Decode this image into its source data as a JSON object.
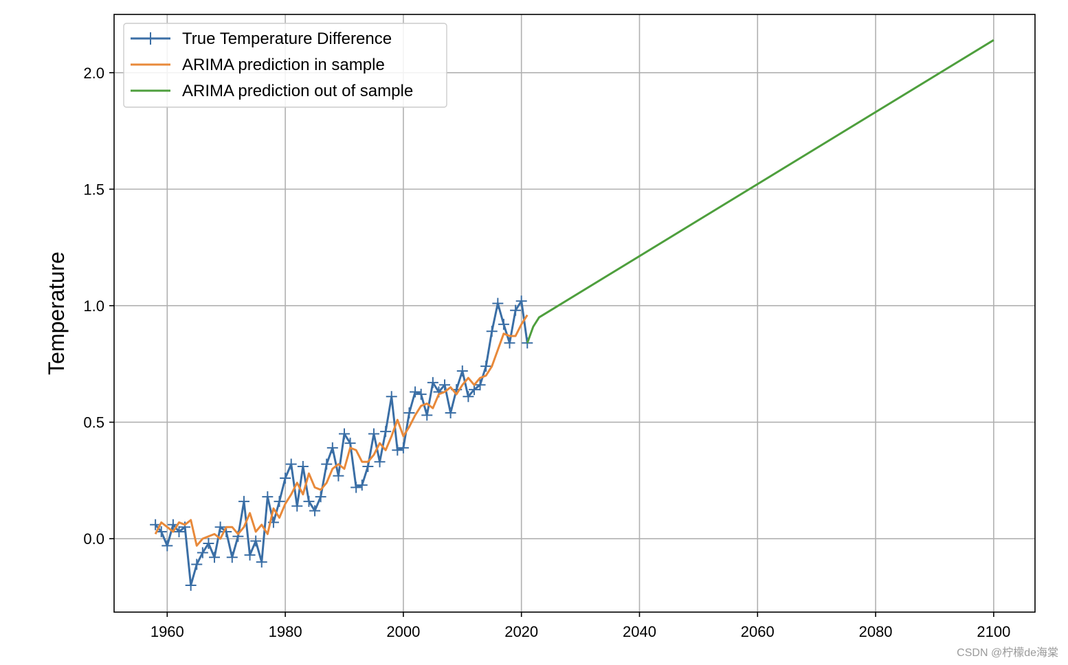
{
  "chart_data": {
    "type": "line",
    "title": "",
    "xlabel": "",
    "ylabel": "Temperature",
    "xlim": [
      1951,
      2107
    ],
    "ylim": [
      -0.315,
      2.25
    ],
    "x_ticks": [
      1960,
      1980,
      2000,
      2020,
      2040,
      2060,
      2080,
      2100
    ],
    "y_ticks": [
      0.0,
      0.5,
      1.0,
      1.5,
      2.0
    ],
    "x_tick_labels": [
      "1960",
      "1980",
      "2000",
      "2020",
      "2040",
      "2060",
      "2080",
      "2100"
    ],
    "y_tick_labels": [
      "0.0",
      "0.5",
      "1.0",
      "1.5",
      "2.0"
    ],
    "grid": true,
    "legend_position": "top-left",
    "colors": {
      "true": "#3a6ea5",
      "in_sample": "#e8893a",
      "out_sample": "#4e9f3d",
      "grid": "#b0b0b0"
    },
    "series": [
      {
        "name": "True Temperature Difference",
        "marker": "+",
        "x": [
          1958,
          1959,
          1960,
          1961,
          1962,
          1963,
          1964,
          1965,
          1966,
          1967,
          1968,
          1969,
          1970,
          1971,
          1972,
          1973,
          1974,
          1975,
          1976,
          1977,
          1978,
          1979,
          1980,
          1981,
          1982,
          1983,
          1984,
          1985,
          1986,
          1987,
          1988,
          1989,
          1990,
          1991,
          1992,
          1993,
          1994,
          1995,
          1996,
          1997,
          1998,
          1999,
          2000,
          2001,
          2002,
          2003,
          2004,
          2005,
          2006,
          2007,
          2008,
          2009,
          2010,
          2011,
          2012,
          2013,
          2014,
          2015,
          2016,
          2017,
          2018,
          2019,
          2020,
          2021
        ],
        "values": [
          0.06,
          0.03,
          -0.03,
          0.06,
          0.03,
          0.05,
          -0.2,
          -0.11,
          -0.06,
          -0.02,
          -0.08,
          0.05,
          0.03,
          -0.08,
          0.01,
          0.16,
          -0.07,
          -0.01,
          -0.1,
          0.18,
          0.07,
          0.16,
          0.26,
          0.32,
          0.14,
          0.31,
          0.16,
          0.12,
          0.18,
          0.32,
          0.39,
          0.27,
          0.45,
          0.41,
          0.22,
          0.23,
          0.31,
          0.45,
          0.33,
          0.46,
          0.61,
          0.38,
          0.39,
          0.54,
          0.63,
          0.62,
          0.53,
          0.67,
          0.63,
          0.66,
          0.54,
          0.64,
          0.72,
          0.61,
          0.64,
          0.66,
          0.74,
          0.89,
          1.01,
          0.92,
          0.84,
          0.98,
          1.02,
          0.84
        ]
      },
      {
        "name": "ARIMA prediction in sample",
        "x": [
          1958,
          1959,
          1960,
          1961,
          1962,
          1963,
          1964,
          1965,
          1966,
          1967,
          1968,
          1969,
          1970,
          1971,
          1972,
          1973,
          1974,
          1975,
          1976,
          1977,
          1978,
          1979,
          1980,
          1981,
          1982,
          1983,
          1984,
          1985,
          1986,
          1987,
          1988,
          1989,
          1990,
          1991,
          1992,
          1993,
          1994,
          1995,
          1996,
          1997,
          1998,
          1999,
          2000,
          2001,
          2002,
          2003,
          2004,
          2005,
          2006,
          2007,
          2008,
          2009,
          2010,
          2011,
          2012,
          2013,
          2014,
          2015,
          2016,
          2017,
          2018,
          2019,
          2020,
          2021
        ],
        "values": [
          0.02,
          0.07,
          0.05,
          0.03,
          0.07,
          0.06,
          0.08,
          -0.03,
          0.0,
          0.01,
          0.02,
          0.0,
          0.05,
          0.05,
          0.02,
          0.05,
          0.11,
          0.03,
          0.06,
          0.02,
          0.13,
          0.09,
          0.15,
          0.19,
          0.24,
          0.19,
          0.28,
          0.22,
          0.21,
          0.24,
          0.3,
          0.32,
          0.3,
          0.39,
          0.38,
          0.33,
          0.33,
          0.36,
          0.41,
          0.38,
          0.44,
          0.51,
          0.44,
          0.48,
          0.53,
          0.57,
          0.58,
          0.56,
          0.62,
          0.63,
          0.65,
          0.62,
          0.66,
          0.69,
          0.66,
          0.69,
          0.7,
          0.74,
          0.81,
          0.88,
          0.87,
          0.87,
          0.92,
          0.96
        ]
      },
      {
        "name": "ARIMA prediction out of sample",
        "x": [
          2021,
          2022,
          2023,
          2100
        ],
        "values": [
          0.84,
          0.91,
          0.95,
          2.14
        ]
      }
    ]
  },
  "watermark": "CSDN @柠檬de海棠"
}
